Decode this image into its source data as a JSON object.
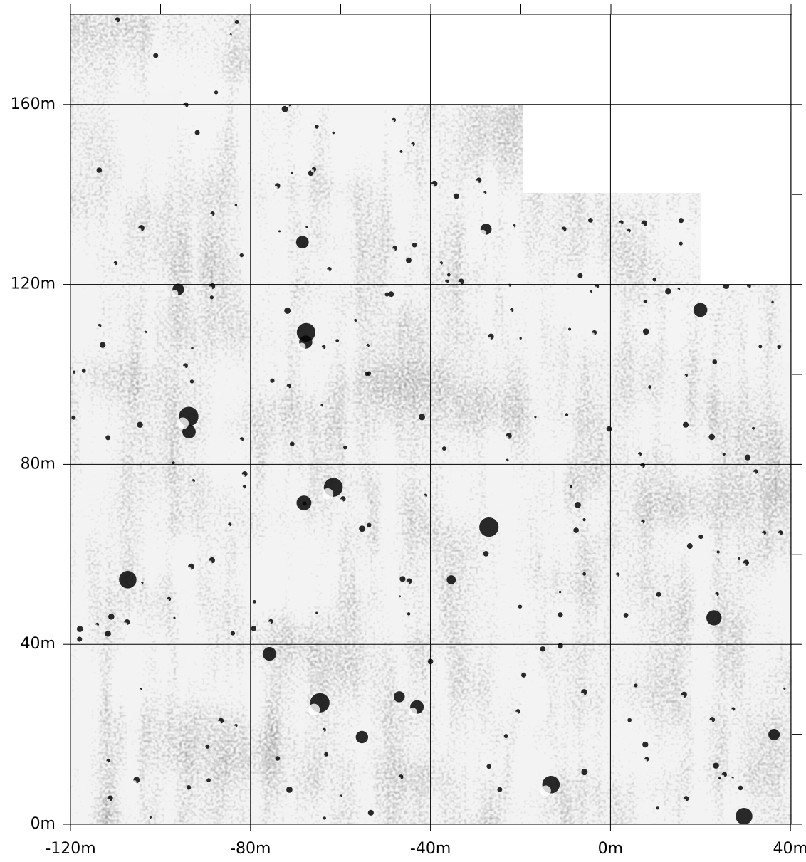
{
  "x_axis": {
    "ticks": [
      {
        "value": -120,
        "label": "-120m"
      },
      {
        "value": -80,
        "label": "-80m"
      },
      {
        "value": -40,
        "label": "-40m"
      },
      {
        "value": 0,
        "label": "0m"
      },
      {
        "value": 40,
        "label": "40m"
      }
    ]
  },
  "y_axis": {
    "ticks": [
      {
        "value": 0,
        "label": "0m"
      },
      {
        "value": 40,
        "label": "40m"
      },
      {
        "value": 80,
        "label": "80m"
      },
      {
        "value": 120,
        "label": "120m"
      },
      {
        "value": 160,
        "label": "160m"
      }
    ]
  }
}
